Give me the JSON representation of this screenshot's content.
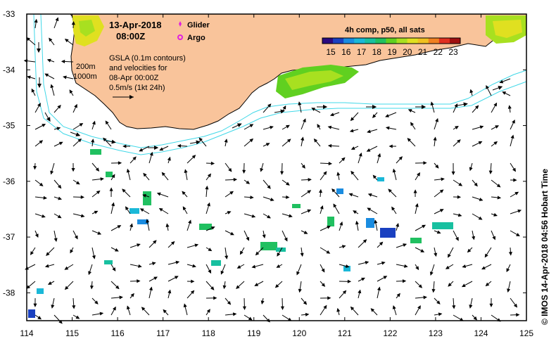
{
  "map": {
    "date_line": "13-Apr-2018",
    "time_line": "08:00Z",
    "legend_glider": "Glider",
    "legend_argo": "Argo",
    "contour_200": "200m",
    "contour_1000": "1000m",
    "gsla_line1": "GSLA (0.1m contours)",
    "gsla_line2": "and velocities for",
    "gsla_line3": "08-Apr 00:00Z",
    "speed_label": "0.5m/s (1kt 24h)",
    "colorbar_title": "4h comp, p50, all sats",
    "colorbar_ticks": [
      "15",
      "16",
      "17",
      "18",
      "19",
      "20",
      "21",
      "22",
      "23"
    ],
    "credit": "© IMOS 14-Apr-2018 04:56 Hobart Time",
    "x_ticks": [
      "114",
      "115",
      "116",
      "117",
      "118",
      "119",
      "120",
      "121",
      "122",
      "123",
      "124",
      "125"
    ],
    "y_ticks": [
      "-33",
      "-34",
      "-35",
      "-36",
      "-37",
      "-38"
    ],
    "extent": {
      "lon": [
        114,
        125
      ],
      "lat": [
        -38.5,
        -33
      ]
    },
    "colors": {
      "land": "#f9c49b",
      "ocean": "#ffffff",
      "contour": "#40d8e8",
      "glider": "#e020e0",
      "argo": "#e020e0"
    },
    "colorbar_colors": [
      "#2a0a80",
      "#1a40c0",
      "#1a8ce0",
      "#1ab8d8",
      "#18c0a0",
      "#20c060",
      "#60d020",
      "#a8e020",
      "#e0e020",
      "#f0c020",
      "#f08020",
      "#e03020",
      "#a01010"
    ]
  }
}
